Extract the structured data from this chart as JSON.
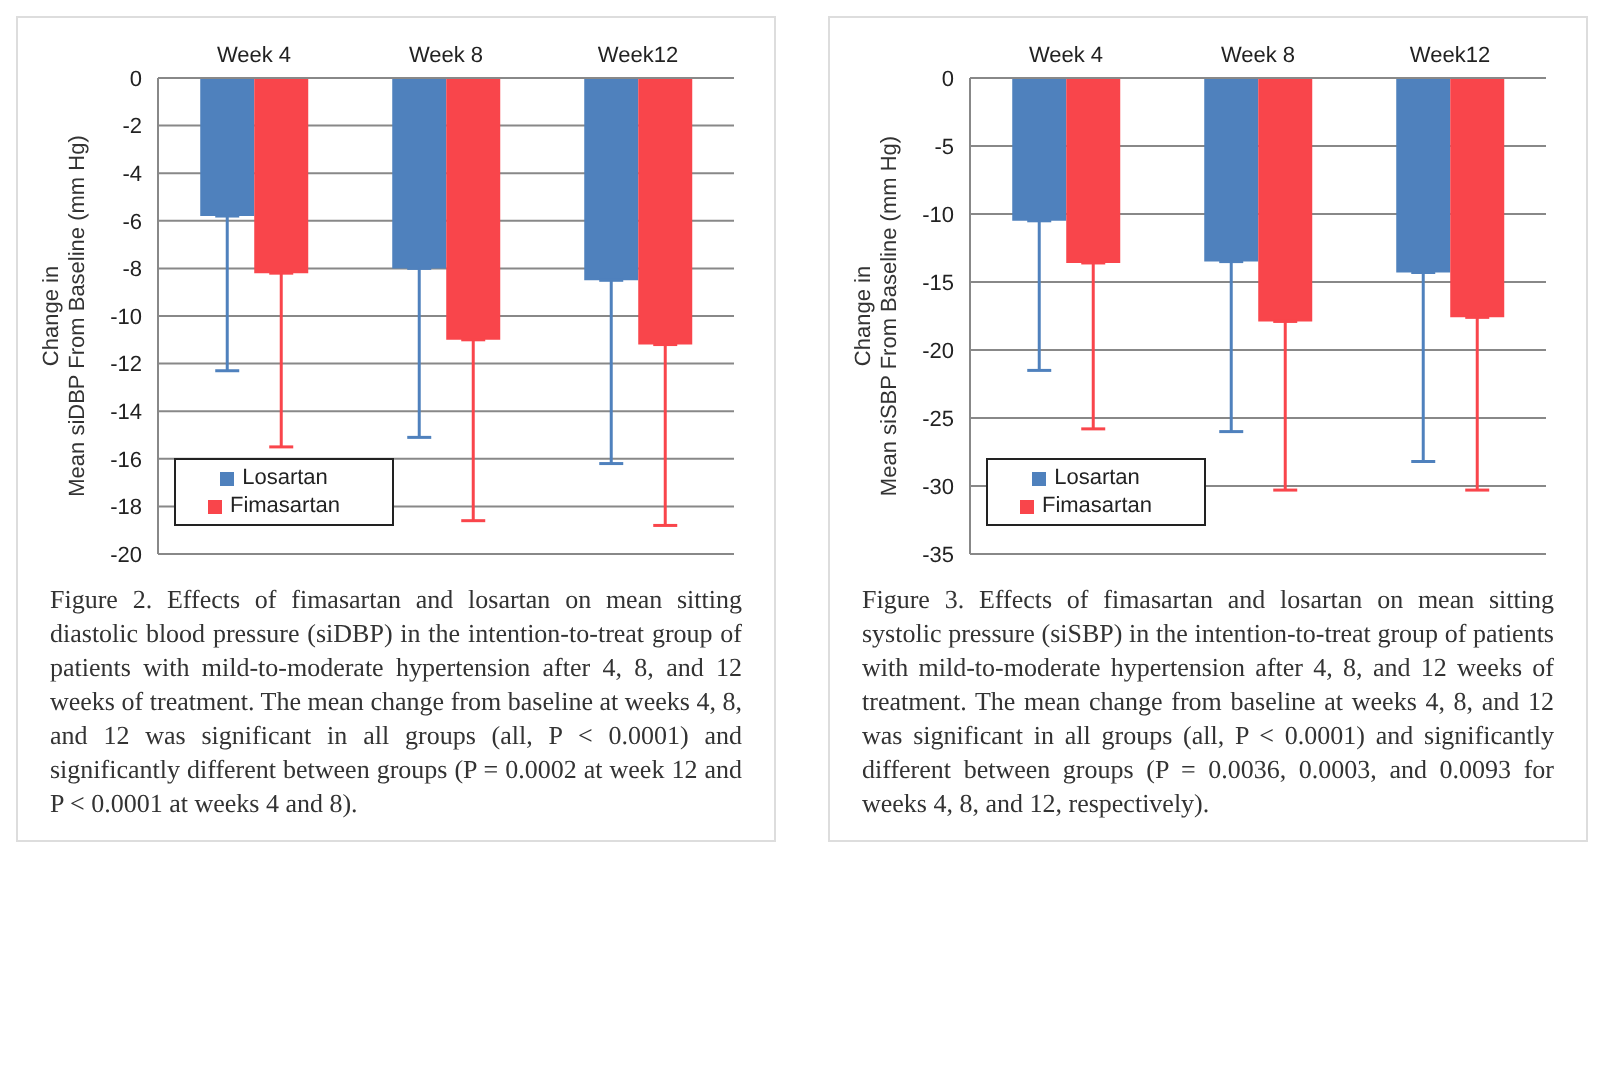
{
  "chart_data": [
    {
      "type": "bar",
      "categories": [
        "Week 4",
        "Week 8",
        "Week12"
      ],
      "ylabel": "Change in\nMean siDBP From Baseline (mm Hg)",
      "ylim": [
        -20,
        0
      ],
      "yticks": [
        0,
        -2,
        -4,
        -6,
        -8,
        -10,
        -12,
        -14,
        -16,
        -18,
        -20
      ],
      "grid": "y",
      "legend": "bottom left",
      "series": [
        {
          "name": "Losartan",
          "color": "#4f81bd",
          "values": [
            -5.8,
            -8.0,
            -8.5
          ],
          "errors": [
            [
              -12.3,
              -5.8
            ],
            [
              -15.1,
              -8.0
            ],
            [
              -16.2,
              -8.5
            ]
          ]
        },
        {
          "name": "Fimasartan",
          "color": "#f9454b",
          "values": [
            -8.2,
            -11.0,
            -11.2
          ],
          "errors": [
            [
              -15.5,
              -8.2
            ],
            [
              -18.6,
              -11.0
            ],
            [
              -18.8,
              -11.2
            ]
          ]
        }
      ],
      "annotations": [
        "Figure 2. Effects of fimasartan and losartan on mean sitting diastolic blood pressure (siDBP) in the intention-to-treat group of patients with mild-to-moderate hypertension after 4, 8, and 12 weeks of treatment. The mean change from baseline at weeks 4, 8, and 12 was significant in all groups (all, P < 0.0001) and significantly different between groups (P = 0.0002 at week 12 and P < 0.0001 at weeks 4 and 8)."
      ]
    },
    {
      "type": "bar",
      "categories": [
        "Week 4",
        "Week 8",
        "Week12"
      ],
      "ylabel": "Change in\nMean siSBP From Baseline (mm Hg)",
      "ylim": [
        -35,
        0
      ],
      "yticks": [
        0,
        -5,
        -10,
        -15,
        -20,
        -25,
        -30,
        -35
      ],
      "grid": "y",
      "legend": "bottom left",
      "series": [
        {
          "name": "Losartan",
          "color": "#4f81bd",
          "values": [
            -10.5,
            -13.5,
            -14.3
          ],
          "errors": [
            [
              -21.5,
              -10.5
            ],
            [
              -26.0,
              -13.5
            ],
            [
              -28.2,
              -14.3
            ]
          ]
        },
        {
          "name": "Fimasartan",
          "color": "#f9454b",
          "values": [
            -13.6,
            -17.9,
            -17.6
          ],
          "errors": [
            [
              -25.8,
              -13.6
            ],
            [
              -30.3,
              -17.9
            ],
            [
              -30.3,
              -17.6
            ]
          ]
        }
      ],
      "annotations": [
        "Figure 3. Effects of fimasartan and losartan on mean sitting systolic pressure (siSBP) in the intention-to-treat group of patients with mild-to-moderate hypertension after 4, 8, and 12 weeks of treatment. The mean change from baseline at weeks 4, 8, and 12 was significant in all groups (all, P < 0.0001) and significantly different between groups (P = 0.0036, 0.0003, and 0.0093 for weeks 4, 8, and 12, respectively)."
      ]
    }
  ]
}
